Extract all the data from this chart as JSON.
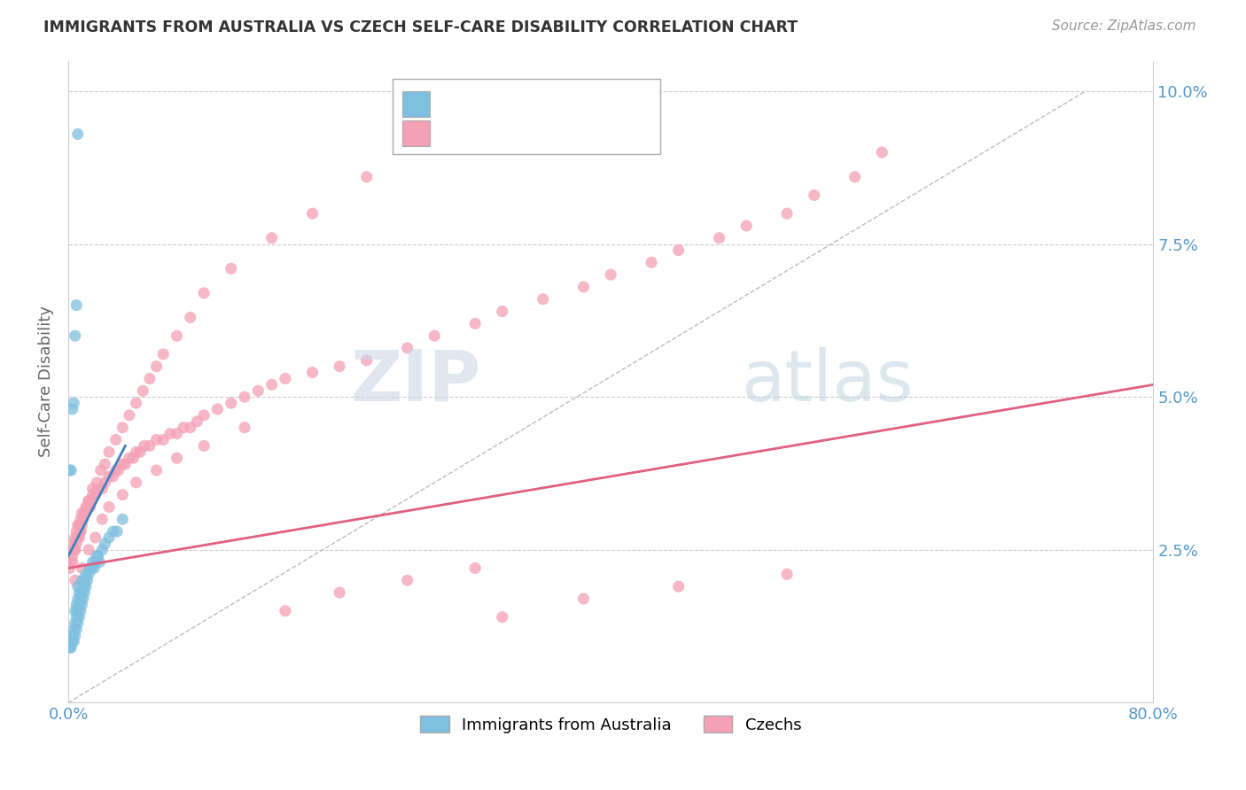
{
  "title": "IMMIGRANTS FROM AUSTRALIA VS CZECH SELF-CARE DISABILITY CORRELATION CHART",
  "source": "Source: ZipAtlas.com",
  "ylabel": "Self-Care Disability",
  "yticks": [
    0.0,
    0.025,
    0.05,
    0.075,
    0.1
  ],
  "ytick_labels": [
    "",
    "2.5%",
    "5.0%",
    "7.5%",
    "10.0%"
  ],
  "xlim": [
    0.0,
    0.8
  ],
  "ylim": [
    0.0,
    0.105
  ],
  "label1": "Immigrants from Australia",
  "label2": "Czechs",
  "color_blue": "#7fbfdf",
  "color_pink": "#f4a0b5",
  "color_blue_line": "#4080c0",
  "color_pink_line": "#e06080",
  "watermark_zip_color": "#ccd8e8",
  "watermark_atlas_color": "#c0d4e0",
  "background_color": "#ffffff",
  "grid_color": "#cccccc",
  "axis_label_color": "#5599cc",
  "blue_x": [
    0.001,
    0.002,
    0.003,
    0.003,
    0.004,
    0.004,
    0.005,
    0.005,
    0.005,
    0.006,
    0.006,
    0.006,
    0.007,
    0.007,
    0.007,
    0.007,
    0.008,
    0.008,
    0.008,
    0.009,
    0.009,
    0.01,
    0.01,
    0.01,
    0.011,
    0.011,
    0.012,
    0.012,
    0.013,
    0.013,
    0.014,
    0.015,
    0.016,
    0.017,
    0.018,
    0.019,
    0.02,
    0.021,
    0.022,
    0.023,
    0.025,
    0.027,
    0.03,
    0.033,
    0.036,
    0.04,
    0.001,
    0.002,
    0.003,
    0.004,
    0.005,
    0.006,
    0.007
  ],
  "blue_y": [
    0.009,
    0.009,
    0.01,
    0.011,
    0.01,
    0.012,
    0.011,
    0.013,
    0.015,
    0.012,
    0.014,
    0.016,
    0.013,
    0.015,
    0.017,
    0.019,
    0.014,
    0.016,
    0.018,
    0.015,
    0.017,
    0.016,
    0.018,
    0.02,
    0.017,
    0.019,
    0.018,
    0.02,
    0.019,
    0.021,
    0.02,
    0.021,
    0.022,
    0.022,
    0.023,
    0.022,
    0.023,
    0.024,
    0.024,
    0.023,
    0.025,
    0.026,
    0.027,
    0.028,
    0.028,
    0.03,
    0.038,
    0.038,
    0.048,
    0.049,
    0.06,
    0.065,
    0.093
  ],
  "pink_x": [
    0.001,
    0.002,
    0.003,
    0.003,
    0.004,
    0.005,
    0.005,
    0.006,
    0.006,
    0.007,
    0.007,
    0.008,
    0.008,
    0.009,
    0.009,
    0.01,
    0.01,
    0.011,
    0.012,
    0.013,
    0.014,
    0.015,
    0.016,
    0.017,
    0.018,
    0.02,
    0.022,
    0.025,
    0.027,
    0.03,
    0.033,
    0.035,
    0.037,
    0.04,
    0.042,
    0.045,
    0.048,
    0.05,
    0.053,
    0.056,
    0.06,
    0.065,
    0.07,
    0.075,
    0.08,
    0.085,
    0.09,
    0.095,
    0.1,
    0.11,
    0.12,
    0.13,
    0.14,
    0.15,
    0.16,
    0.18,
    0.2,
    0.22,
    0.25,
    0.27,
    0.3,
    0.32,
    0.35,
    0.38,
    0.4,
    0.43,
    0.45,
    0.48,
    0.5,
    0.53,
    0.55,
    0.58,
    0.6,
    0.003,
    0.005,
    0.007,
    0.009,
    0.012,
    0.015,
    0.018,
    0.021,
    0.024,
    0.027,
    0.03,
    0.035,
    0.04,
    0.045,
    0.05,
    0.055,
    0.06,
    0.065,
    0.07,
    0.08,
    0.09,
    0.1,
    0.12,
    0.15,
    0.18,
    0.22,
    0.27,
    0.32,
    0.38,
    0.45,
    0.53,
    0.005,
    0.01,
    0.015,
    0.02,
    0.025,
    0.03,
    0.04,
    0.05,
    0.065,
    0.08,
    0.1,
    0.13,
    0.16,
    0.2,
    0.25,
    0.3
  ],
  "pink_y": [
    0.022,
    0.023,
    0.024,
    0.026,
    0.025,
    0.025,
    0.027,
    0.026,
    0.028,
    0.027,
    0.029,
    0.027,
    0.029,
    0.028,
    0.03,
    0.029,
    0.031,
    0.03,
    0.031,
    0.032,
    0.032,
    0.033,
    0.032,
    0.033,
    0.034,
    0.034,
    0.035,
    0.035,
    0.036,
    0.037,
    0.037,
    0.038,
    0.038,
    0.039,
    0.039,
    0.04,
    0.04,
    0.041,
    0.041,
    0.042,
    0.042,
    0.043,
    0.043,
    0.044,
    0.044,
    0.045,
    0.045,
    0.046,
    0.047,
    0.048,
    0.049,
    0.05,
    0.051,
    0.052,
    0.053,
    0.054,
    0.055,
    0.056,
    0.058,
    0.06,
    0.062,
    0.064,
    0.066,
    0.068,
    0.07,
    0.072,
    0.074,
    0.076,
    0.078,
    0.08,
    0.083,
    0.086,
    0.09,
    0.023,
    0.025,
    0.027,
    0.028,
    0.031,
    0.033,
    0.035,
    0.036,
    0.038,
    0.039,
    0.041,
    0.043,
    0.045,
    0.047,
    0.049,
    0.051,
    0.053,
    0.055,
    0.057,
    0.06,
    0.063,
    0.067,
    0.071,
    0.076,
    0.08,
    0.086,
    0.092,
    0.014,
    0.017,
    0.019,
    0.021,
    0.02,
    0.022,
    0.025,
    0.027,
    0.03,
    0.032,
    0.034,
    0.036,
    0.038,
    0.04,
    0.042,
    0.045,
    0.015,
    0.018,
    0.02,
    0.022
  ],
  "blue_line_x": [
    0.0,
    0.042
  ],
  "blue_line_y": [
    0.024,
    0.042
  ],
  "pink_line_x": [
    0.0,
    0.8
  ],
  "pink_line_y": [
    0.022,
    0.052
  ],
  "dash_line_x": [
    0.0,
    0.75
  ],
  "dash_line_y": [
    0.0,
    0.1
  ]
}
